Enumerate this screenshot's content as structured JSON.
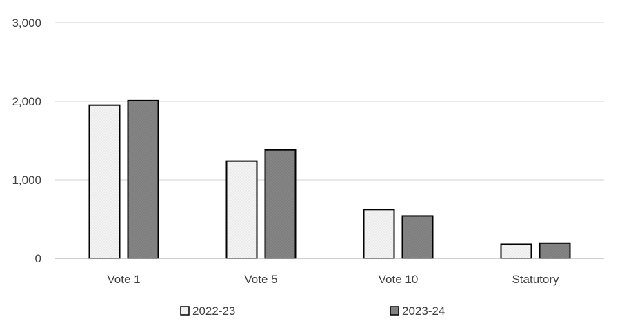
{
  "chart_data": {
    "type": "bar",
    "title": "",
    "xlabel": "",
    "ylabel": "",
    "categories": [
      "Vote 1",
      "Vote 5",
      "Vote 10",
      "Statutory"
    ],
    "series": [
      {
        "name": "2022-23",
        "values": [
          1950,
          1240,
          620,
          180
        ],
        "color": "#f2f2f2"
      },
      {
        "name": "2023-24",
        "values": [
          2010,
          1380,
          540,
          195
        ],
        "color": "#808080"
      }
    ],
    "ylim": [
      0,
      3000
    ],
    "yticks": [
      0,
      1000,
      2000,
      3000
    ],
    "ytick_labels": [
      "0",
      "1,000",
      "2,000",
      "3,000"
    ],
    "grid": true,
    "legend_position": "bottom"
  }
}
